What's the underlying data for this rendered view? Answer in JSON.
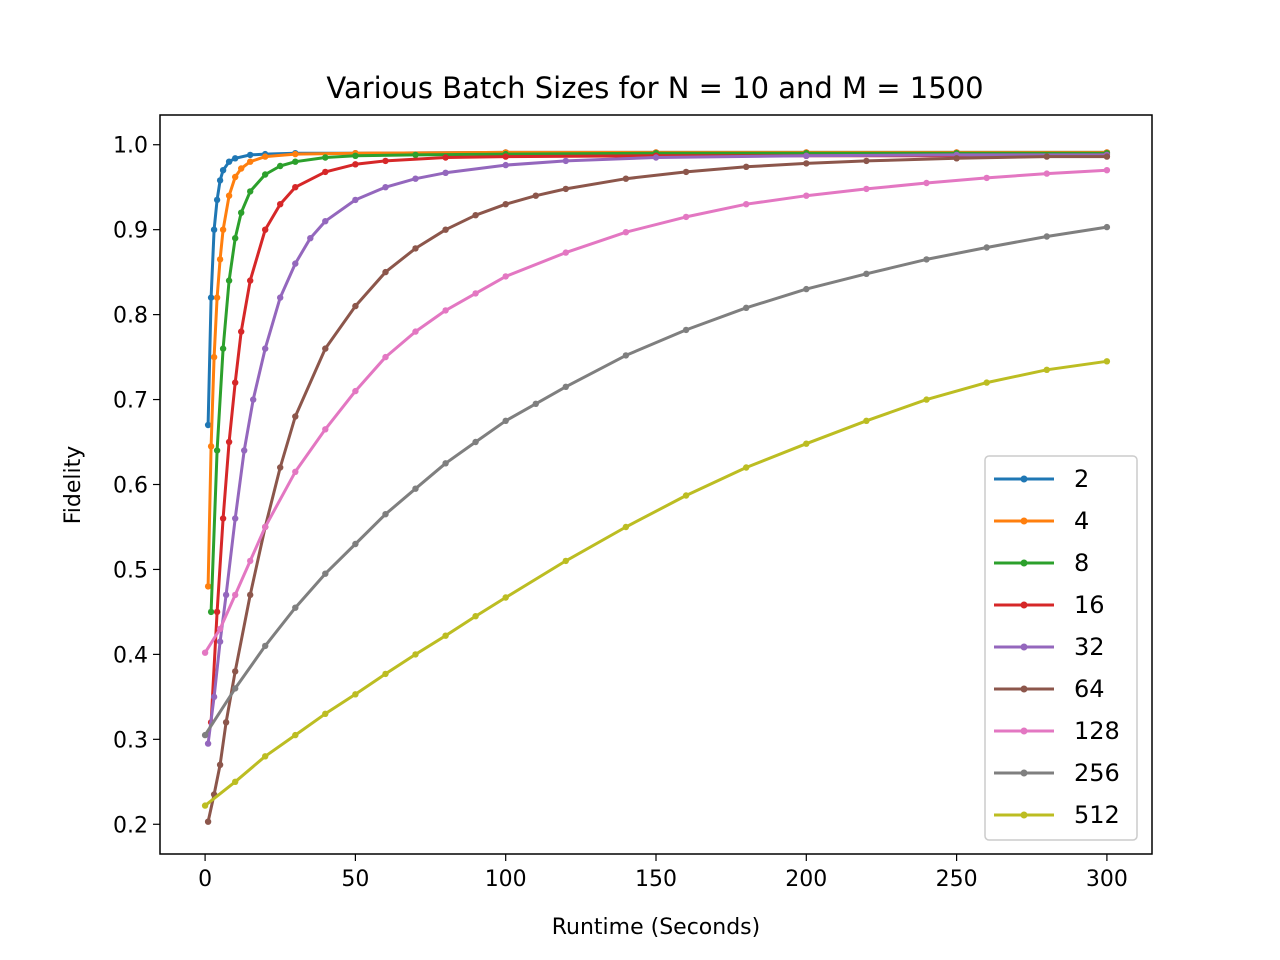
{
  "chart_data": {
    "type": "line",
    "title": "Various Batch Sizes for N = 10 and M = 1500",
    "xlabel": "Runtime (Seconds)",
    "ylabel": "Fidelity",
    "xlim": [
      -15,
      315
    ],
    "ylim": [
      0.165,
      1.035
    ],
    "xticks": [
      "0",
      "50",
      "100",
      "150",
      "200",
      "250",
      "300"
    ],
    "yticks": [
      "0.2",
      "0.3",
      "0.4",
      "0.5",
      "0.6",
      "0.7",
      "0.8",
      "0.9",
      "1.0"
    ],
    "grid": false,
    "legend_position": "lower right",
    "marker": "dot",
    "series": [
      {
        "name": "2",
        "color": "#1f77b4",
        "x": [
          1,
          2,
          3,
          4,
          5,
          6,
          8,
          10,
          15,
          20,
          30,
          50,
          100,
          150,
          200,
          250,
          300
        ],
        "y": [
          0.67,
          0.82,
          0.9,
          0.935,
          0.958,
          0.97,
          0.98,
          0.984,
          0.988,
          0.989,
          0.99,
          0.99,
          0.991,
          0.991,
          0.991,
          0.991,
          0.991
        ]
      },
      {
        "name": "4",
        "color": "#ff7f0e",
        "x": [
          1,
          2,
          3,
          4,
          5,
          6,
          8,
          10,
          12,
          15,
          20,
          30,
          50,
          100,
          150,
          200,
          250,
          300
        ],
        "y": [
          0.48,
          0.645,
          0.75,
          0.82,
          0.865,
          0.9,
          0.94,
          0.962,
          0.972,
          0.98,
          0.986,
          0.989,
          0.99,
          0.991,
          0.991,
          0.991,
          0.991,
          0.991
        ]
      },
      {
        "name": "8",
        "color": "#2ca02c",
        "x": [
          2,
          4,
          6,
          8,
          10,
          12,
          15,
          20,
          25,
          30,
          40,
          50,
          70,
          100,
          150,
          200,
          250,
          300
        ],
        "y": [
          0.45,
          0.64,
          0.76,
          0.84,
          0.89,
          0.92,
          0.945,
          0.965,
          0.975,
          0.98,
          0.985,
          0.987,
          0.988,
          0.989,
          0.99,
          0.99,
          0.99,
          0.99
        ]
      },
      {
        "name": "16",
        "color": "#d62728",
        "x": [
          2,
          4,
          6,
          8,
          10,
          12,
          15,
          20,
          25,
          30,
          40,
          50,
          60,
          80,
          100,
          150,
          200,
          250,
          300
        ],
        "y": [
          0.32,
          0.45,
          0.56,
          0.65,
          0.72,
          0.78,
          0.84,
          0.9,
          0.93,
          0.95,
          0.968,
          0.977,
          0.981,
          0.985,
          0.986,
          0.987,
          0.987,
          0.987,
          0.988
        ]
      },
      {
        "name": "32",
        "color": "#9467bd",
        "x": [
          1,
          3,
          5,
          7,
          10,
          13,
          16,
          20,
          25,
          30,
          35,
          40,
          50,
          60,
          70,
          80,
          100,
          120,
          150,
          200,
          250,
          300
        ],
        "y": [
          0.295,
          0.35,
          0.415,
          0.47,
          0.56,
          0.64,
          0.7,
          0.76,
          0.82,
          0.86,
          0.89,
          0.91,
          0.935,
          0.95,
          0.96,
          0.967,
          0.976,
          0.981,
          0.985,
          0.987,
          0.988,
          0.988
        ]
      },
      {
        "name": "64",
        "color": "#8c564b",
        "x": [
          1,
          3,
          5,
          7,
          10,
          15,
          20,
          25,
          30,
          40,
          50,
          60,
          70,
          80,
          90,
          100,
          110,
          120,
          140,
          160,
          180,
          200,
          220,
          250,
          280,
          300
        ],
        "y": [
          0.203,
          0.235,
          0.27,
          0.32,
          0.38,
          0.47,
          0.55,
          0.62,
          0.68,
          0.76,
          0.81,
          0.85,
          0.878,
          0.9,
          0.917,
          0.93,
          0.94,
          0.948,
          0.96,
          0.968,
          0.974,
          0.978,
          0.981,
          0.984,
          0.986,
          0.986
        ]
      },
      {
        "name": "128",
        "color": "#e377c2",
        "x": [
          0,
          5,
          10,
          15,
          20,
          30,
          40,
          50,
          60,
          70,
          80,
          90,
          100,
          120,
          140,
          160,
          180,
          200,
          220,
          240,
          260,
          280,
          300
        ],
        "y": [
          0.402,
          0.43,
          0.47,
          0.51,
          0.55,
          0.615,
          0.665,
          0.71,
          0.75,
          0.78,
          0.805,
          0.825,
          0.845,
          0.873,
          0.897,
          0.915,
          0.93,
          0.94,
          0.948,
          0.955,
          0.961,
          0.966,
          0.97
        ]
      },
      {
        "name": "256",
        "color": "#7f7f7f",
        "x": [
          0,
          10,
          20,
          30,
          40,
          50,
          60,
          70,
          80,
          90,
          100,
          110,
          120,
          140,
          160,
          180,
          200,
          220,
          240,
          260,
          280,
          300
        ],
        "y": [
          0.305,
          0.36,
          0.41,
          0.455,
          0.495,
          0.53,
          0.565,
          0.595,
          0.625,
          0.65,
          0.675,
          0.695,
          0.715,
          0.752,
          0.782,
          0.808,
          0.83,
          0.848,
          0.865,
          0.879,
          0.892,
          0.903
        ]
      },
      {
        "name": "512",
        "color": "#bcbd22",
        "x": [
          0,
          10,
          20,
          30,
          40,
          50,
          60,
          70,
          80,
          90,
          100,
          120,
          140,
          160,
          180,
          200,
          220,
          240,
          260,
          280,
          300
        ],
        "y": [
          0.222,
          0.25,
          0.28,
          0.305,
          0.33,
          0.353,
          0.377,
          0.4,
          0.422,
          0.445,
          0.467,
          0.51,
          0.55,
          0.587,
          0.62,
          0.648,
          0.675,
          0.7,
          0.72,
          0.735,
          0.745
        ]
      }
    ]
  }
}
